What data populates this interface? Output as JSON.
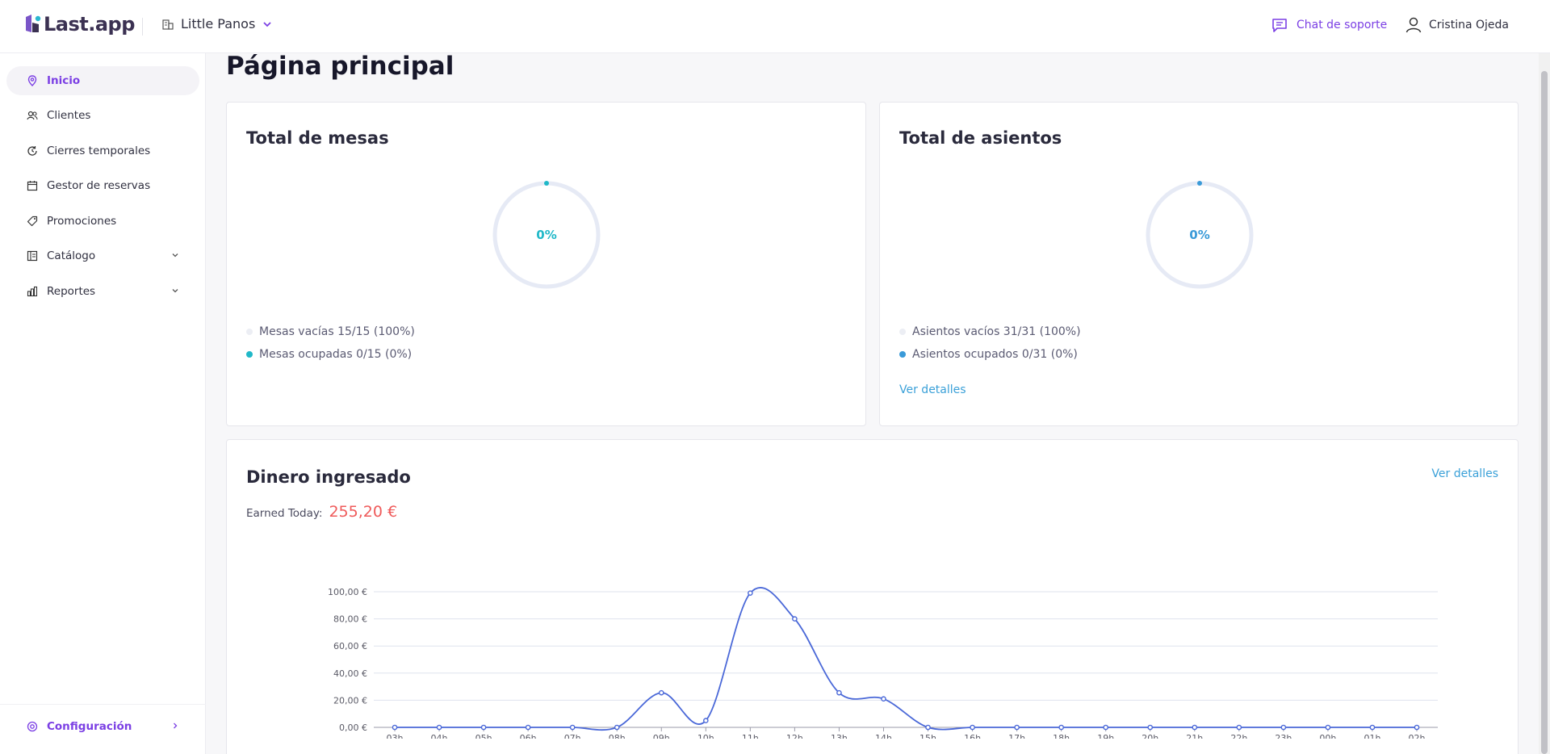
{
  "header": {
    "logo_text": "Last.app",
    "store_name": "Little Panos",
    "support_label": "Chat de soporte",
    "user_name": "Cristina Ojeda"
  },
  "sidebar": {
    "items": [
      {
        "label": "Inicio",
        "icon": "location-pin-icon",
        "active": true
      },
      {
        "label": "Clientes",
        "icon": "users-icon"
      },
      {
        "label": "Cierres temporales",
        "icon": "clock-refresh-icon"
      },
      {
        "label": "Gestor de reservas",
        "icon": "calendar-icon"
      },
      {
        "label": "Promociones",
        "icon": "tag-icon"
      },
      {
        "label": "Catálogo",
        "icon": "catalog-icon",
        "expandable": true
      },
      {
        "label": "Reportes",
        "icon": "bar-chart-icon",
        "expandable": true
      }
    ],
    "config_label": "Configuración"
  },
  "main": {
    "title": "Página principal",
    "tables_card": {
      "title": "Total de mesas",
      "percent": "0%",
      "empty_label": "Mesas vacías 15/15 (100%)",
      "occupied_label": "Mesas ocupadas 0/15 (0%)",
      "accent": "#20b8c8"
    },
    "seats_card": {
      "title": "Total de asientos",
      "percent": "0%",
      "empty_label": "Asientos vacíos 31/31 (100%)",
      "occupied_label": "Asientos ocupados 0/31 (0%)",
      "details_link": "Ver detalles",
      "accent": "#3a9ad8"
    },
    "money_card": {
      "title": "Dinero ingresado",
      "details_link": "Ver detalles",
      "earned_label": "Earned Today:",
      "earned_value": "255,20 €"
    }
  },
  "chart_data": {
    "type": "line",
    "x": [
      "03h",
      "04h",
      "05h",
      "06h",
      "07h",
      "08h",
      "09h",
      "10h",
      "11h",
      "12h",
      "13h",
      "14h",
      "15h",
      "16h",
      "17h",
      "18h",
      "19h",
      "20h",
      "21h",
      "22h",
      "23h",
      "00h",
      "01h",
      "02h"
    ],
    "series": [
      {
        "values": [
          0,
          0,
          0,
          0,
          0,
          0,
          25.5,
          5,
          99,
          80,
          25.5,
          21,
          0,
          0,
          0,
          0,
          0,
          0,
          0,
          0,
          0,
          0,
          0,
          0
        ]
      }
    ],
    "y_ticks": [
      "0,00 €",
      "20,00 €",
      "40,00 €",
      "60,00 €",
      "80,00 €",
      "100,00 €"
    ],
    "ylim": [
      0,
      100
    ],
    "grid": true,
    "color": "#4a68d8"
  }
}
